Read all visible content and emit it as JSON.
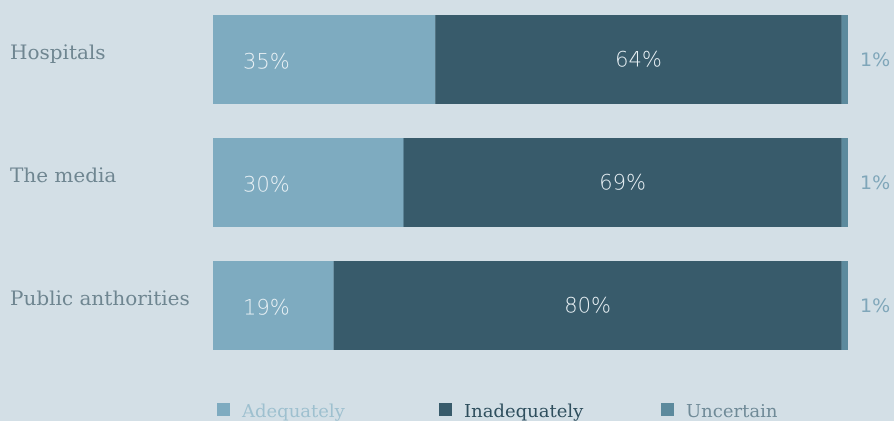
{
  "chart_data": {
    "type": "bar",
    "orientation": "horizontal",
    "stacked": true,
    "unit": "%",
    "categories": [
      "Hospitals",
      "The media",
      "Public anthorities"
    ],
    "series": [
      {
        "name": "Adequately",
        "values": [
          35,
          30,
          19
        ],
        "labels": [
          "35%",
          "30%",
          "19%"
        ],
        "color": "#7eabc0"
      },
      {
        "name": "Inadequately",
        "values": [
          64,
          69,
          80
        ],
        "labels": [
          "64%",
          "69%",
          "80%"
        ],
        "color": "#385b6b"
      },
      {
        "name": "Uncertain",
        "values": [
          1,
          1,
          1
        ],
        "labels": [
          "1%",
          "1%",
          "1%"
        ],
        "color": "#5c8a9d"
      }
    ],
    "xlim": [
      0,
      100
    ],
    "grid": false,
    "legend_position": "bottom",
    "legend_text_colors": [
      "#9ec0cf",
      "#2e4e5d",
      "#6f8a97"
    ],
    "background": "#d3dfe6",
    "category_label_color": "#6f8691",
    "segment_label_color": "#e8f0f4",
    "outside_label_color": "#7fa6b9"
  }
}
